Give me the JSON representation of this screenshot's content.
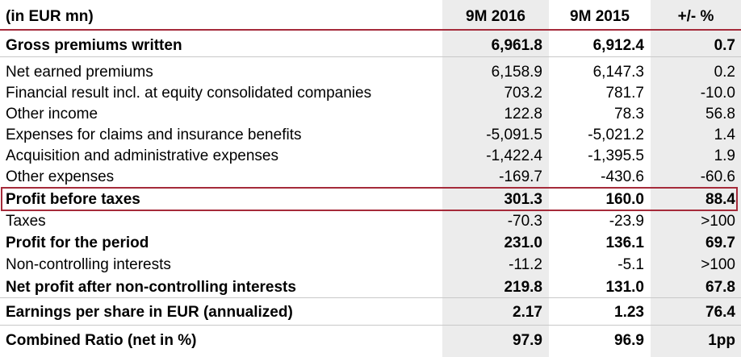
{
  "header": {
    "label": "(in EUR mn)",
    "col1": "9M 2016",
    "col2": "9M 2015",
    "col3": "+/- %"
  },
  "rows": [
    {
      "label": "Gross premiums written",
      "v2016": "6,961.8",
      "v2015": "6,912.4",
      "change": "0.7",
      "bold": true
    },
    {
      "label": "Net earned premiums",
      "v2016": "6,158.9",
      "v2015": "6,147.3",
      "change": "0.2",
      "bold": false
    },
    {
      "label": "Financial result incl. at equity consolidated companies",
      "v2016": "703.2",
      "v2015": "781.7",
      "change": "-10.0",
      "bold": false
    },
    {
      "label": "Other income",
      "v2016": "122.8",
      "v2015": "78.3",
      "change": "56.8",
      "bold": false
    },
    {
      "label": "Expenses for claims and insurance benefits",
      "v2016": "-5,091.5",
      "v2015": "-5,021.2",
      "change": "1.4",
      "bold": false
    },
    {
      "label": "Acquisition and administrative expenses",
      "v2016": "-1,422.4",
      "v2015": "-1,395.5",
      "change": "1.9",
      "bold": false
    },
    {
      "label": "Other expenses",
      "v2016": "-169.7",
      "v2015": "-430.6",
      "change": "-60.6",
      "bold": false
    },
    {
      "label": "Profit before taxes",
      "v2016": "301.3",
      "v2015": "160.0",
      "change": "88.4",
      "bold": true,
      "highlighted": true
    },
    {
      "label": "Taxes",
      "v2016": "-70.3",
      "v2015": "-23.9",
      "change": ">100",
      "bold": false
    },
    {
      "label": "Profit for the period",
      "v2016": "231.0",
      "v2015": "136.1",
      "change": "69.7",
      "bold": true
    },
    {
      "label": "Non-controlling interests",
      "v2016": "-11.2",
      "v2015": "-5.1",
      "change": ">100",
      "bold": false
    },
    {
      "label": "Net profit after non-controlling interests",
      "v2016": "219.8",
      "v2015": "131.0",
      "change": "67.8",
      "bold": true
    },
    {
      "label": "Earnings per share in EUR (annualized)",
      "v2016": "2.17",
      "v2015": "1.23",
      "change": "76.4",
      "bold": true
    },
    {
      "label": "Combined Ratio (net in %)",
      "v2016": "97.9",
      "v2015": "96.9",
      "change": "1pp",
      "bold": true
    }
  ],
  "colors": {
    "accent": "#a52a3a",
    "shade": "#ececec",
    "divider": "#c8c8c8"
  }
}
